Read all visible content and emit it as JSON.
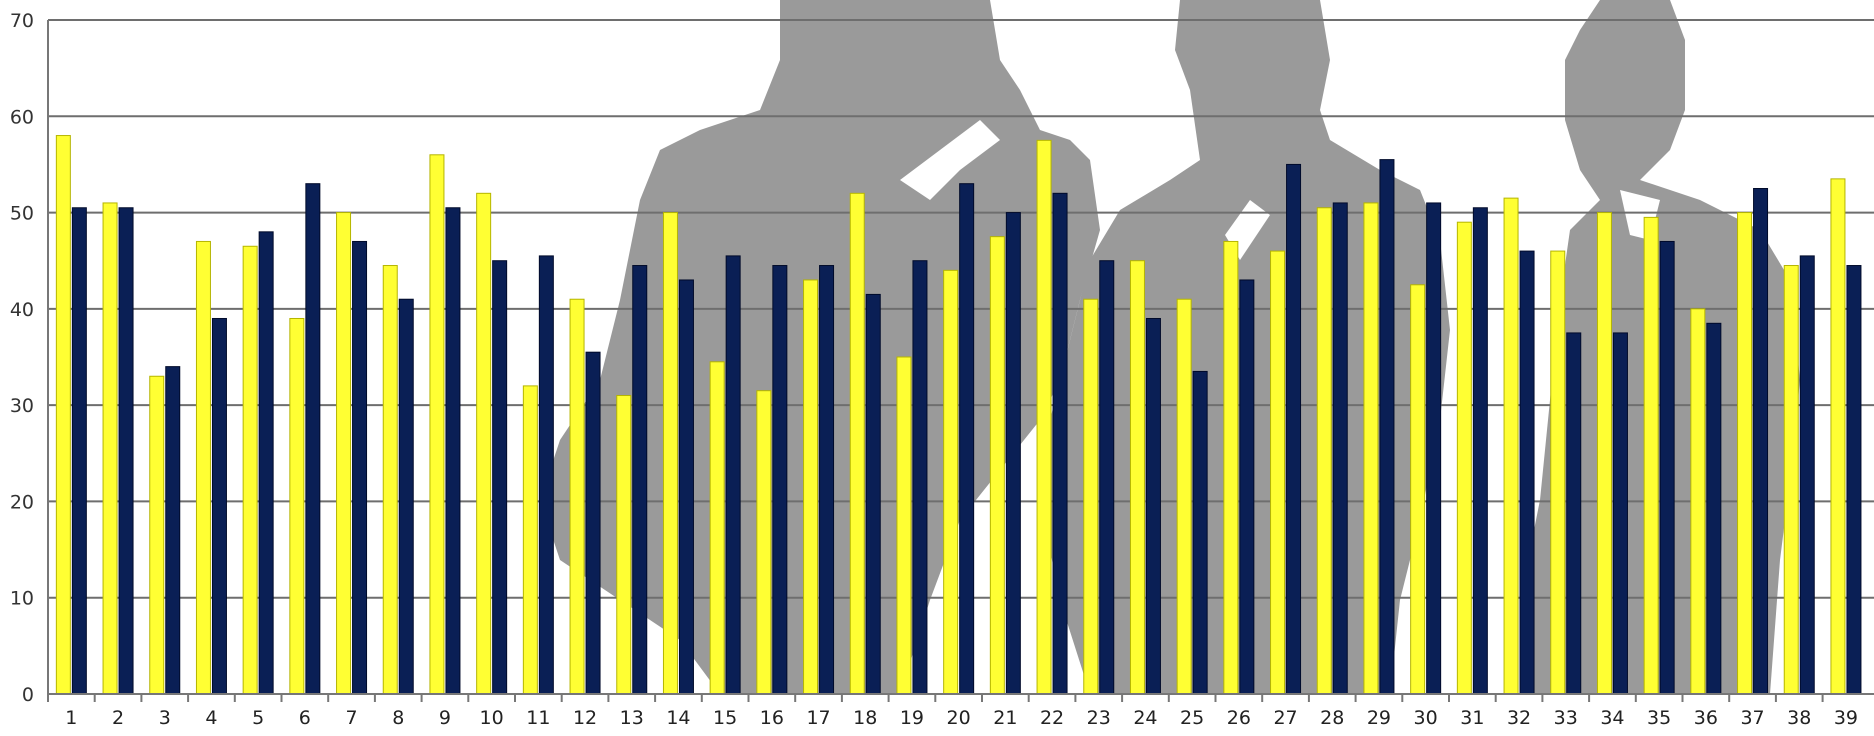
{
  "chart_data": {
    "type": "bar",
    "ylim": [
      0,
      70
    ],
    "yticks": [
      0,
      10,
      20,
      30,
      40,
      50,
      60,
      70
    ],
    "grid": true,
    "legend": "none",
    "categories": [
      "1",
      "2",
      "3",
      "4",
      "5",
      "6",
      "7",
      "8",
      "9",
      "10",
      "11",
      "12",
      "13",
      "14",
      "15",
      "16",
      "17",
      "18",
      "19",
      "20",
      "21",
      "22",
      "23",
      "24",
      "25",
      "26",
      "27",
      "28",
      "29",
      "30",
      "31",
      "32",
      "33",
      "34",
      "35",
      "36",
      "37",
      "38",
      "39"
    ],
    "series": [
      {
        "color": "#ffff33",
        "values": [
          58,
          51,
          33,
          47,
          46.5,
          39,
          50,
          44.5,
          56,
          52,
          32,
          41,
          31,
          50,
          34.5,
          31.5,
          43,
          52,
          35,
          44,
          47.5,
          57.5,
          41,
          45,
          41,
          47,
          46,
          50.5,
          51,
          42.5,
          49,
          51.5,
          46,
          50,
          49.5,
          40,
          50,
          44.5,
          53.5
        ]
      },
      {
        "color": "#0a1f55",
        "values": [
          50.5,
          50.5,
          34,
          39,
          48,
          53,
          47,
          41,
          50.5,
          45,
          45.5,
          35.5,
          44.5,
          43,
          45.5,
          44.5,
          44.5,
          41.5,
          45,
          53,
          50,
          52,
          45,
          39,
          33.5,
          43,
          55,
          51,
          55.5,
          51,
          50.5,
          46,
          37.5,
          37.5,
          47,
          38.5,
          52.5,
          45.5,
          44.5
        ]
      }
    ]
  },
  "background": {
    "silhouette_color": "#9a9a9a",
    "axis_color": "#777777"
  }
}
